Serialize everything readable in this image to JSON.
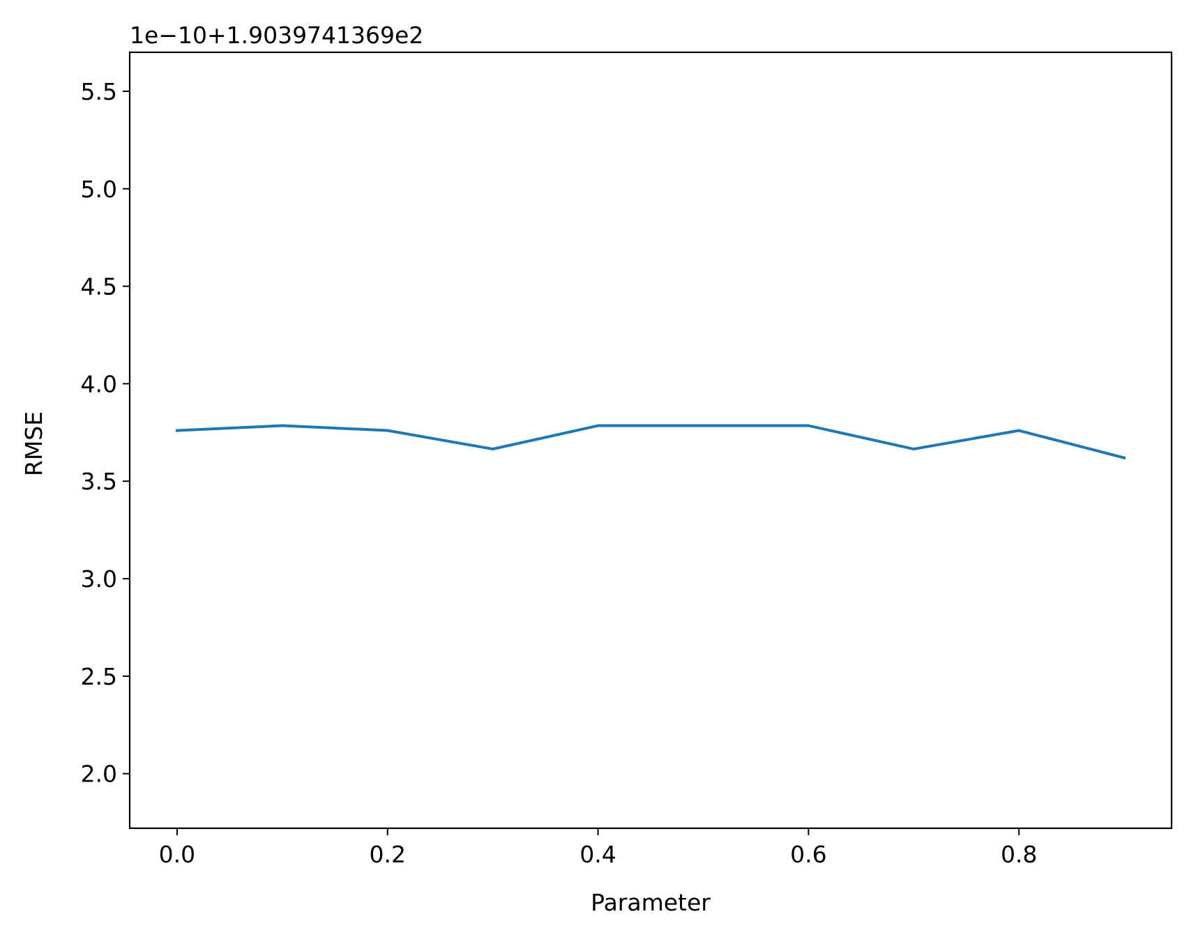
{
  "chart_data": {
    "type": "line",
    "title": "",
    "xlabel": "Parameter",
    "ylabel": "RMSE",
    "offset_text": "1e−10+1.9039741369e2",
    "xlim": [
      -0.045,
      0.945
    ],
    "ylim": [
      1.72,
      5.7
    ],
    "x_ticks": [
      0.0,
      0.2,
      0.4,
      0.6,
      0.8
    ],
    "x_tick_labels": [
      "0.0",
      "0.2",
      "0.4",
      "0.6",
      "0.8"
    ],
    "y_ticks": [
      2.0,
      2.5,
      3.0,
      3.5,
      4.0,
      4.5,
      5.0,
      5.5
    ],
    "y_tick_labels": [
      "2.0",
      "2.5",
      "3.0",
      "3.5",
      "4.0",
      "4.5",
      "5.0",
      "5.5"
    ],
    "grid": false,
    "series": [
      {
        "color": "#1f77b4",
        "x": [
          0.0,
          0.1,
          0.2,
          0.3,
          0.4,
          0.5,
          0.6,
          0.7,
          0.8,
          0.9
        ],
        "y": [
          3.76,
          3.785,
          3.76,
          3.665,
          3.785,
          3.785,
          3.785,
          3.665,
          3.76,
          3.62
        ]
      }
    ]
  }
}
